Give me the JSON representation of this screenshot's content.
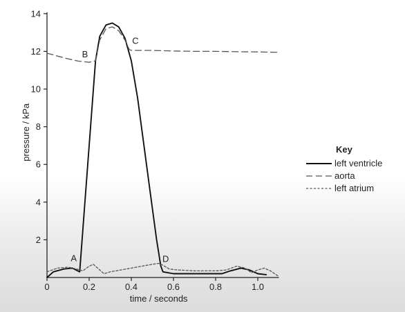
{
  "chart_data": {
    "type": "line",
    "title": "",
    "xlabel": "time / seconds",
    "ylabel": "pressure / kPa",
    "xlim": [
      0,
      1.1
    ],
    "ylim": [
      0,
      14
    ],
    "x_ticks": [
      0,
      0.2,
      0.4,
      0.6,
      0.8,
      1.0
    ],
    "x_tick_labels": [
      "0",
      "0.2",
      "0.4",
      "0.6",
      "0.8",
      "1.0"
    ],
    "y_ticks": [
      2,
      4,
      6,
      8,
      10,
      12,
      14
    ],
    "y_tick_labels": [
      "2",
      "4",
      "6",
      "8",
      "10",
      "12",
      "14"
    ],
    "grid": false,
    "legend": {
      "title": "Key",
      "placement": "right"
    },
    "series": [
      {
        "name": "left ventricle",
        "style": "solid",
        "color": "#111111",
        "points": [
          [
            0,
            0
          ],
          [
            0.03,
            0.3
          ],
          [
            0.08,
            0.45
          ],
          [
            0.12,
            0.5
          ],
          [
            0.155,
            0.3
          ],
          [
            0.17,
            2.5
          ],
          [
            0.2,
            7
          ],
          [
            0.23,
            11.5
          ],
          [
            0.25,
            12.8
          ],
          [
            0.28,
            13.4
          ],
          [
            0.31,
            13.5
          ],
          [
            0.34,
            13.3
          ],
          [
            0.37,
            12.7
          ],
          [
            0.4,
            11.5
          ],
          [
            0.43,
            9.5
          ],
          [
            0.46,
            7
          ],
          [
            0.49,
            4.5
          ],
          [
            0.52,
            2
          ],
          [
            0.54,
            0.6
          ],
          [
            0.55,
            0.3
          ],
          [
            0.6,
            0.2
          ],
          [
            0.7,
            0.2
          ],
          [
            0.83,
            0.2
          ],
          [
            0.87,
            0.35
          ],
          [
            0.92,
            0.5
          ],
          [
            0.96,
            0.4
          ],
          [
            1.0,
            0.2
          ],
          [
            1.04,
            0.15
          ]
        ]
      },
      {
        "name": "aorta",
        "style": "dashed",
        "color": "#555555",
        "points": [
          [
            0,
            11.9
          ],
          [
            0.05,
            11.75
          ],
          [
            0.1,
            11.6
          ],
          [
            0.15,
            11.48
          ],
          [
            0.2,
            11.42
          ],
          [
            0.23,
            11.5
          ],
          [
            0.25,
            12.6
          ],
          [
            0.28,
            13.2
          ],
          [
            0.31,
            13.3
          ],
          [
            0.34,
            13.1
          ],
          [
            0.37,
            12.6
          ],
          [
            0.39,
            12.1
          ],
          [
            0.4,
            12.05
          ],
          [
            0.5,
            12.05
          ],
          [
            0.6,
            12.02
          ],
          [
            0.7,
            12.0
          ],
          [
            0.8,
            12.0
          ],
          [
            0.9,
            11.98
          ],
          [
            1.0,
            11.97
          ],
          [
            1.1,
            11.95
          ]
        ]
      },
      {
        "name": "left atrium",
        "style": "dotted",
        "color": "#555555",
        "points": [
          [
            0,
            0.3
          ],
          [
            0.05,
            0.5
          ],
          [
            0.1,
            0.55
          ],
          [
            0.14,
            0.45
          ],
          [
            0.17,
            0.35
          ],
          [
            0.2,
            0.6
          ],
          [
            0.22,
            0.7
          ],
          [
            0.25,
            0.4
          ],
          [
            0.27,
            0.2
          ],
          [
            0.3,
            0.3
          ],
          [
            0.35,
            0.4
          ],
          [
            0.4,
            0.5
          ],
          [
            0.45,
            0.6
          ],
          [
            0.5,
            0.7
          ],
          [
            0.53,
            0.75
          ],
          [
            0.55,
            0.65
          ],
          [
            0.58,
            0.45
          ],
          [
            0.62,
            0.4
          ],
          [
            0.7,
            0.35
          ],
          [
            0.8,
            0.35
          ],
          [
            0.85,
            0.4
          ],
          [
            0.9,
            0.6
          ],
          [
            0.94,
            0.5
          ],
          [
            0.97,
            0.25
          ],
          [
            1.0,
            0.4
          ],
          [
            1.03,
            0.5
          ],
          [
            1.06,
            0.35
          ],
          [
            1.1,
            0.05
          ]
        ]
      }
    ],
    "annotations": [
      {
        "text": "A",
        "x": 0.14,
        "y": 0.5
      },
      {
        "text": "B",
        "x": 0.2,
        "y": 11.4
      },
      {
        "text": "C",
        "x": 0.4,
        "y": 12.1
      },
      {
        "text": "D",
        "x": 0.55,
        "y": 0.6
      }
    ]
  }
}
